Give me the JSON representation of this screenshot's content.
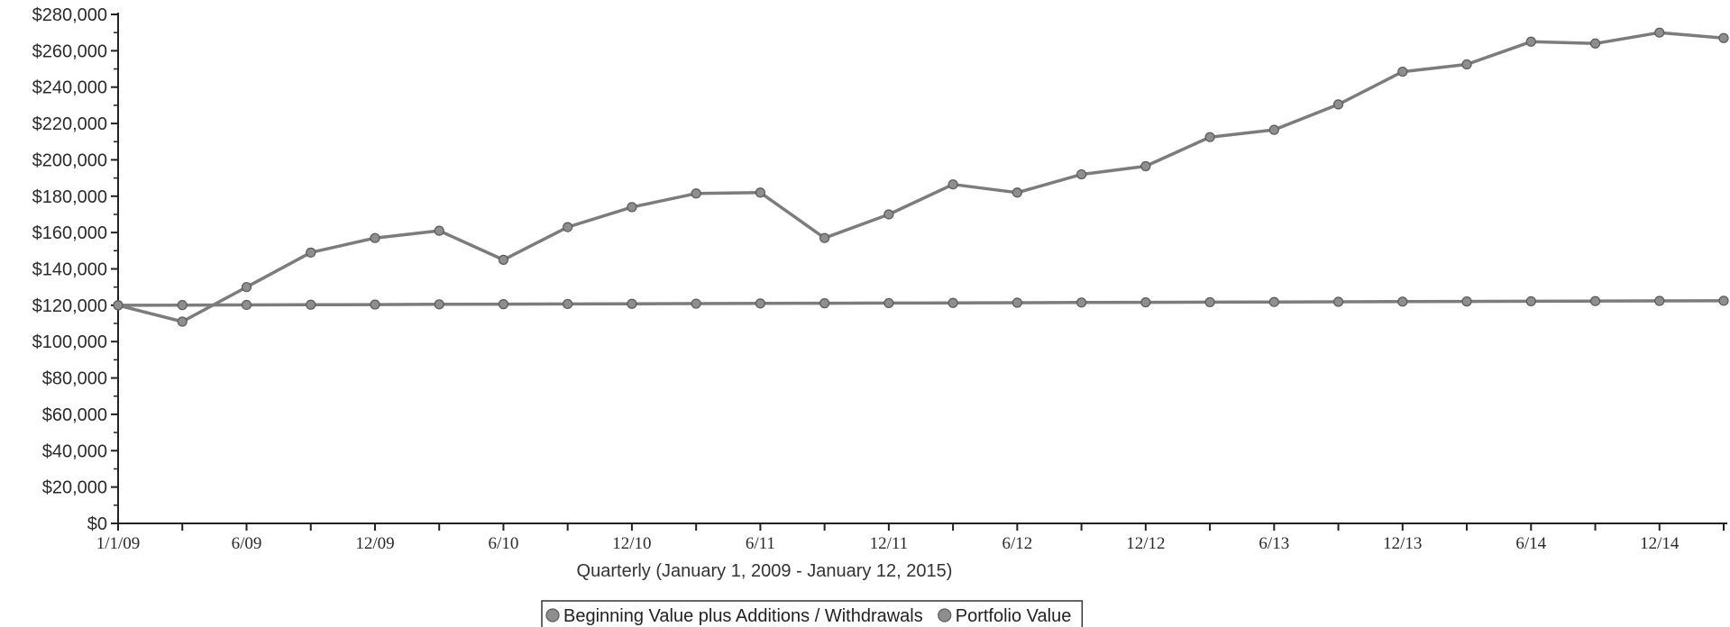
{
  "chart_data": {
    "type": "line",
    "title": "",
    "xlabel": "Quarterly (January 1, 2009 - January 12, 2015)",
    "ylabel": "",
    "ylim": [
      0,
      280000
    ],
    "y_ticks": [
      "$0",
      "$20,000",
      "$40,000",
      "$60,000",
      "$80,000",
      "$100,000",
      "$120,000",
      "$140,000",
      "$160,000",
      "$180,000",
      "$200,000",
      "$220,000",
      "$240,000",
      "$260,000",
      "$280,000"
    ],
    "x_tick_labels": [
      "1/1/09",
      "6/09",
      "12/09",
      "6/10",
      "12/10",
      "6/11",
      "12/11",
      "6/12",
      "12/12",
      "6/13",
      "12/13",
      "6/14",
      "12/14"
    ],
    "grid": false,
    "legend_position": "bottom-center",
    "colors": {
      "axis": "#222222",
      "line": "#7c7c7c",
      "marker": "#8e8e8e",
      "marker_edge": "#5a5a5a"
    },
    "series": [
      {
        "name": "Beginning Value plus Additions / Withdrawals",
        "values": [
          120000,
          120100,
          120200,
          120300,
          120400,
          120500,
          120600,
          120700,
          120800,
          120900,
          121000,
          121100,
          121200,
          121300,
          121400,
          121500,
          121600,
          121700,
          121800,
          121900,
          122000,
          122100,
          122200,
          122300,
          122400,
          122500
        ]
      },
      {
        "name": "Portfolio Value",
        "values": [
          120000,
          111000,
          130000,
          149000,
          157000,
          161000,
          145000,
          163000,
          174000,
          181500,
          182000,
          157000,
          170000,
          186500,
          182000,
          192000,
          196500,
          212500,
          216500,
          230500,
          248500,
          252500,
          265000,
          264000,
          270000,
          267000
        ]
      }
    ]
  }
}
